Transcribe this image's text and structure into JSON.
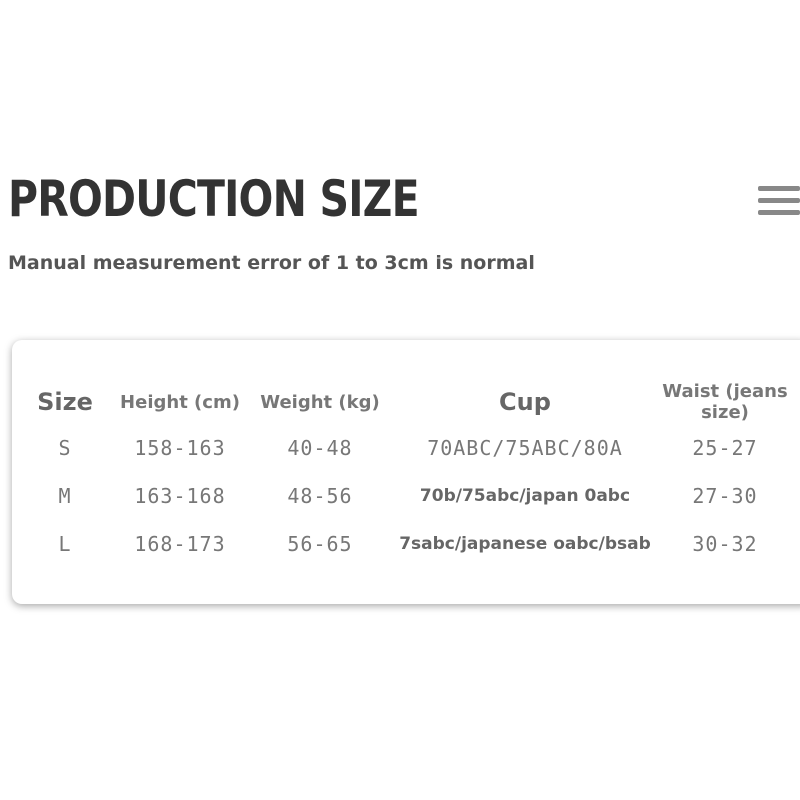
{
  "header": {
    "title": "PRODUCTION SIZE",
    "subtitle": "Manual measurement error of 1 to 3cm is normal"
  },
  "table": {
    "columns": [
      "Size",
      "Height (cm)",
      "Weight (kg)",
      "Cup",
      "Waist (jeans size)"
    ],
    "rows": [
      [
        "S",
        "158-163",
        "40-48",
        "70ABC/75ABC/80A",
        "25-27"
      ],
      [
        "M",
        "163-168",
        "48-56",
        "70b/75abc/japan 0abc",
        "27-30"
      ],
      [
        "L",
        "168-173",
        "56-65",
        "7sabc/japanese oabc/bsab",
        "30-32"
      ]
    ]
  }
}
